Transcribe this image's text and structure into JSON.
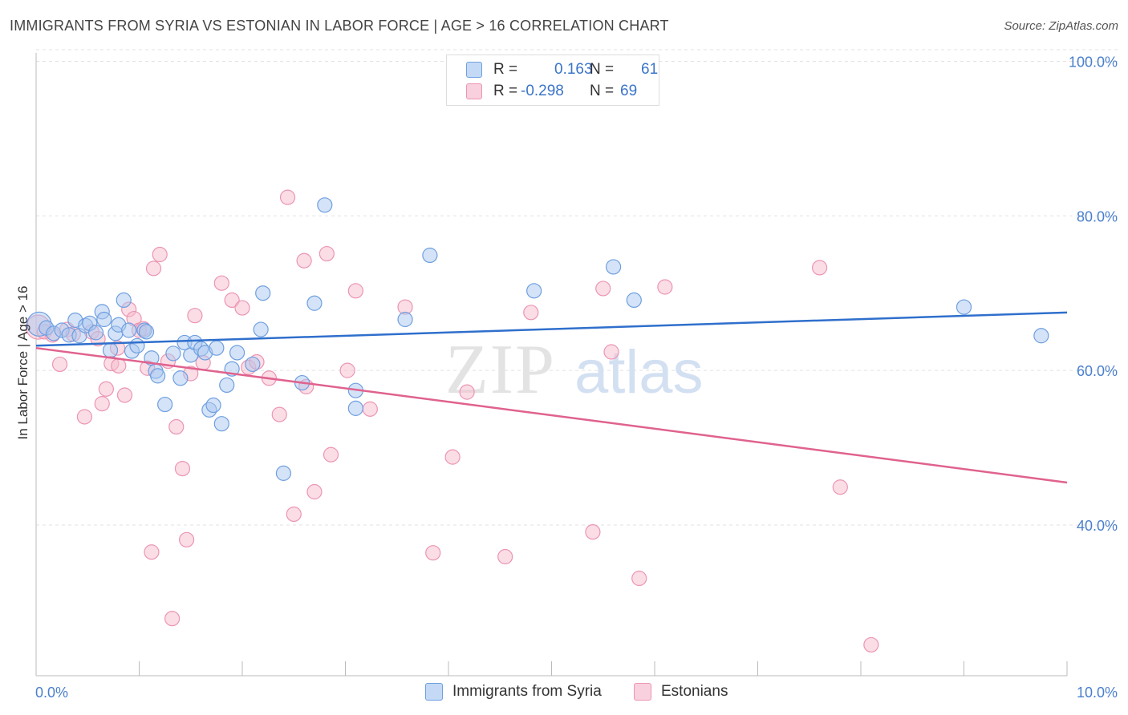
{
  "title": "IMMIGRANTS FROM SYRIA VS ESTONIAN IN LABOR FORCE | AGE > 16 CORRELATION CHART",
  "source": "Source: ZipAtlas.com",
  "legend": {
    "r_label": "R =",
    "n_label": "N =",
    "rows": [
      {
        "r": "0.163",
        "n": "61"
      },
      {
        "r": "-0.298",
        "n": "69"
      }
    ]
  },
  "colors": {
    "syria_fill": "#aac8f0",
    "syria_stroke": "#6f9fe0",
    "syria_line": "#2f6fcc",
    "eston_fill": "#f7bccd",
    "eston_stroke": "#ec95b2",
    "eston_line": "#e0628e"
  },
  "chart_data": {
    "type": "scatter",
    "xlabel": "",
    "ylabel": "In Labor Force | Age > 16",
    "x_tick_labels": [
      "0.0%",
      "10.0%"
    ],
    "y_tick_labels": [
      "100.0%",
      "80.0%",
      "60.0%",
      "40.0%"
    ],
    "y_ticks": [
      100,
      80,
      60,
      40
    ],
    "xlim": [
      0,
      10
    ],
    "ylim": [
      20.5,
      101.5
    ],
    "watermark": "ZIPatlas",
    "series": [
      {
        "name": "Immigrants from Syria",
        "trend": [
          [
            0,
            63.2
          ],
          [
            10,
            67.5
          ]
        ],
        "points": [
          [
            0.03,
            66.0
          ],
          [
            0.1,
            65.5
          ],
          [
            0.17,
            64.8
          ],
          [
            0.25,
            65.2
          ],
          [
            0.32,
            64.6
          ],
          [
            0.38,
            66.5
          ],
          [
            0.42,
            64.5
          ],
          [
            0.48,
            65.8
          ],
          [
            0.52,
            66.1
          ],
          [
            0.58,
            64.9
          ],
          [
            0.64,
            67.6
          ],
          [
            0.66,
            66.6
          ],
          [
            0.72,
            62.6
          ],
          [
            0.77,
            64.8
          ],
          [
            0.8,
            65.9
          ],
          [
            0.85,
            69.1
          ],
          [
            0.9,
            65.2
          ],
          [
            0.93,
            62.5
          ],
          [
            0.98,
            63.2
          ],
          [
            1.05,
            65.2
          ],
          [
            1.07,
            65.0
          ],
          [
            1.12,
            61.6
          ],
          [
            1.16,
            59.9
          ],
          [
            1.18,
            59.3
          ],
          [
            1.25,
            55.6
          ],
          [
            1.33,
            62.2
          ],
          [
            1.4,
            59.0
          ],
          [
            1.44,
            63.6
          ],
          [
            1.5,
            62.0
          ],
          [
            1.54,
            63.6
          ],
          [
            1.6,
            62.8
          ],
          [
            1.64,
            62.3
          ],
          [
            1.68,
            54.9
          ],
          [
            1.72,
            55.5
          ],
          [
            1.75,
            62.9
          ],
          [
            1.8,
            53.1
          ],
          [
            1.85,
            58.1
          ],
          [
            1.9,
            60.2
          ],
          [
            1.95,
            62.3
          ],
          [
            2.1,
            60.8
          ],
          [
            2.18,
            65.3
          ],
          [
            2.2,
            70.0
          ],
          [
            2.4,
            46.7
          ],
          [
            2.58,
            58.4
          ],
          [
            2.7,
            68.7
          ],
          [
            2.8,
            81.4
          ],
          [
            3.1,
            57.4
          ],
          [
            3.1,
            55.1
          ],
          [
            3.58,
            66.6
          ],
          [
            3.82,
            74.9
          ],
          [
            4.83,
            70.3
          ],
          [
            5.6,
            73.4
          ],
          [
            5.8,
            69.1
          ],
          [
            9.0,
            68.2
          ],
          [
            9.75,
            64.5
          ]
        ]
      },
      {
        "name": "Estonians",
        "trend": [
          [
            0,
            62.9
          ],
          [
            10,
            45.5
          ]
        ],
        "points": [
          [
            0.02,
            65.6
          ],
          [
            0.08,
            65.0
          ],
          [
            0.16,
            64.6
          ],
          [
            0.23,
            60.8
          ],
          [
            0.3,
            65.3
          ],
          [
            0.36,
            64.7
          ],
          [
            0.47,
            54.0
          ],
          [
            0.54,
            65.0
          ],
          [
            0.6,
            64.1
          ],
          [
            0.64,
            55.7
          ],
          [
            0.68,
            57.6
          ],
          [
            0.73,
            60.9
          ],
          [
            0.79,
            62.9
          ],
          [
            0.8,
            60.6
          ],
          [
            0.86,
            56.8
          ],
          [
            0.9,
            67.9
          ],
          [
            0.95,
            66.7
          ],
          [
            1.0,
            65.2
          ],
          [
            1.04,
            65.4
          ],
          [
            1.08,
            60.3
          ],
          [
            1.12,
            36.5
          ],
          [
            1.14,
            73.2
          ],
          [
            1.2,
            75.0
          ],
          [
            1.28,
            61.2
          ],
          [
            1.32,
            27.9
          ],
          [
            1.36,
            52.7
          ],
          [
            1.42,
            47.3
          ],
          [
            1.46,
            38.1
          ],
          [
            1.5,
            59.6
          ],
          [
            1.54,
            67.1
          ],
          [
            1.62,
            61.0
          ],
          [
            1.8,
            71.3
          ],
          [
            1.9,
            69.1
          ],
          [
            2.0,
            68.1
          ],
          [
            2.06,
            60.4
          ],
          [
            2.14,
            61.1
          ],
          [
            2.26,
            59.0
          ],
          [
            2.36,
            54.3
          ],
          [
            2.44,
            82.4
          ],
          [
            2.5,
            41.4
          ],
          [
            2.6,
            74.2
          ],
          [
            2.62,
            57.9
          ],
          [
            2.7,
            44.3
          ],
          [
            2.82,
            75.1
          ],
          [
            2.86,
            49.1
          ],
          [
            3.02,
            60.0
          ],
          [
            3.1,
            70.3
          ],
          [
            3.24,
            55.0
          ],
          [
            3.58,
            68.2
          ],
          [
            3.85,
            36.4
          ],
          [
            4.04,
            48.8
          ],
          [
            4.18,
            57.2
          ],
          [
            4.55,
            35.9
          ],
          [
            4.8,
            67.5
          ],
          [
            5.5,
            70.6
          ],
          [
            5.58,
            62.4
          ],
          [
            5.85,
            33.1
          ],
          [
            6.1,
            70.8
          ],
          [
            7.6,
            73.3
          ],
          [
            7.8,
            44.9
          ],
          [
            8.1,
            24.5
          ],
          [
            5.4,
            39.1
          ]
        ]
      }
    ]
  }
}
